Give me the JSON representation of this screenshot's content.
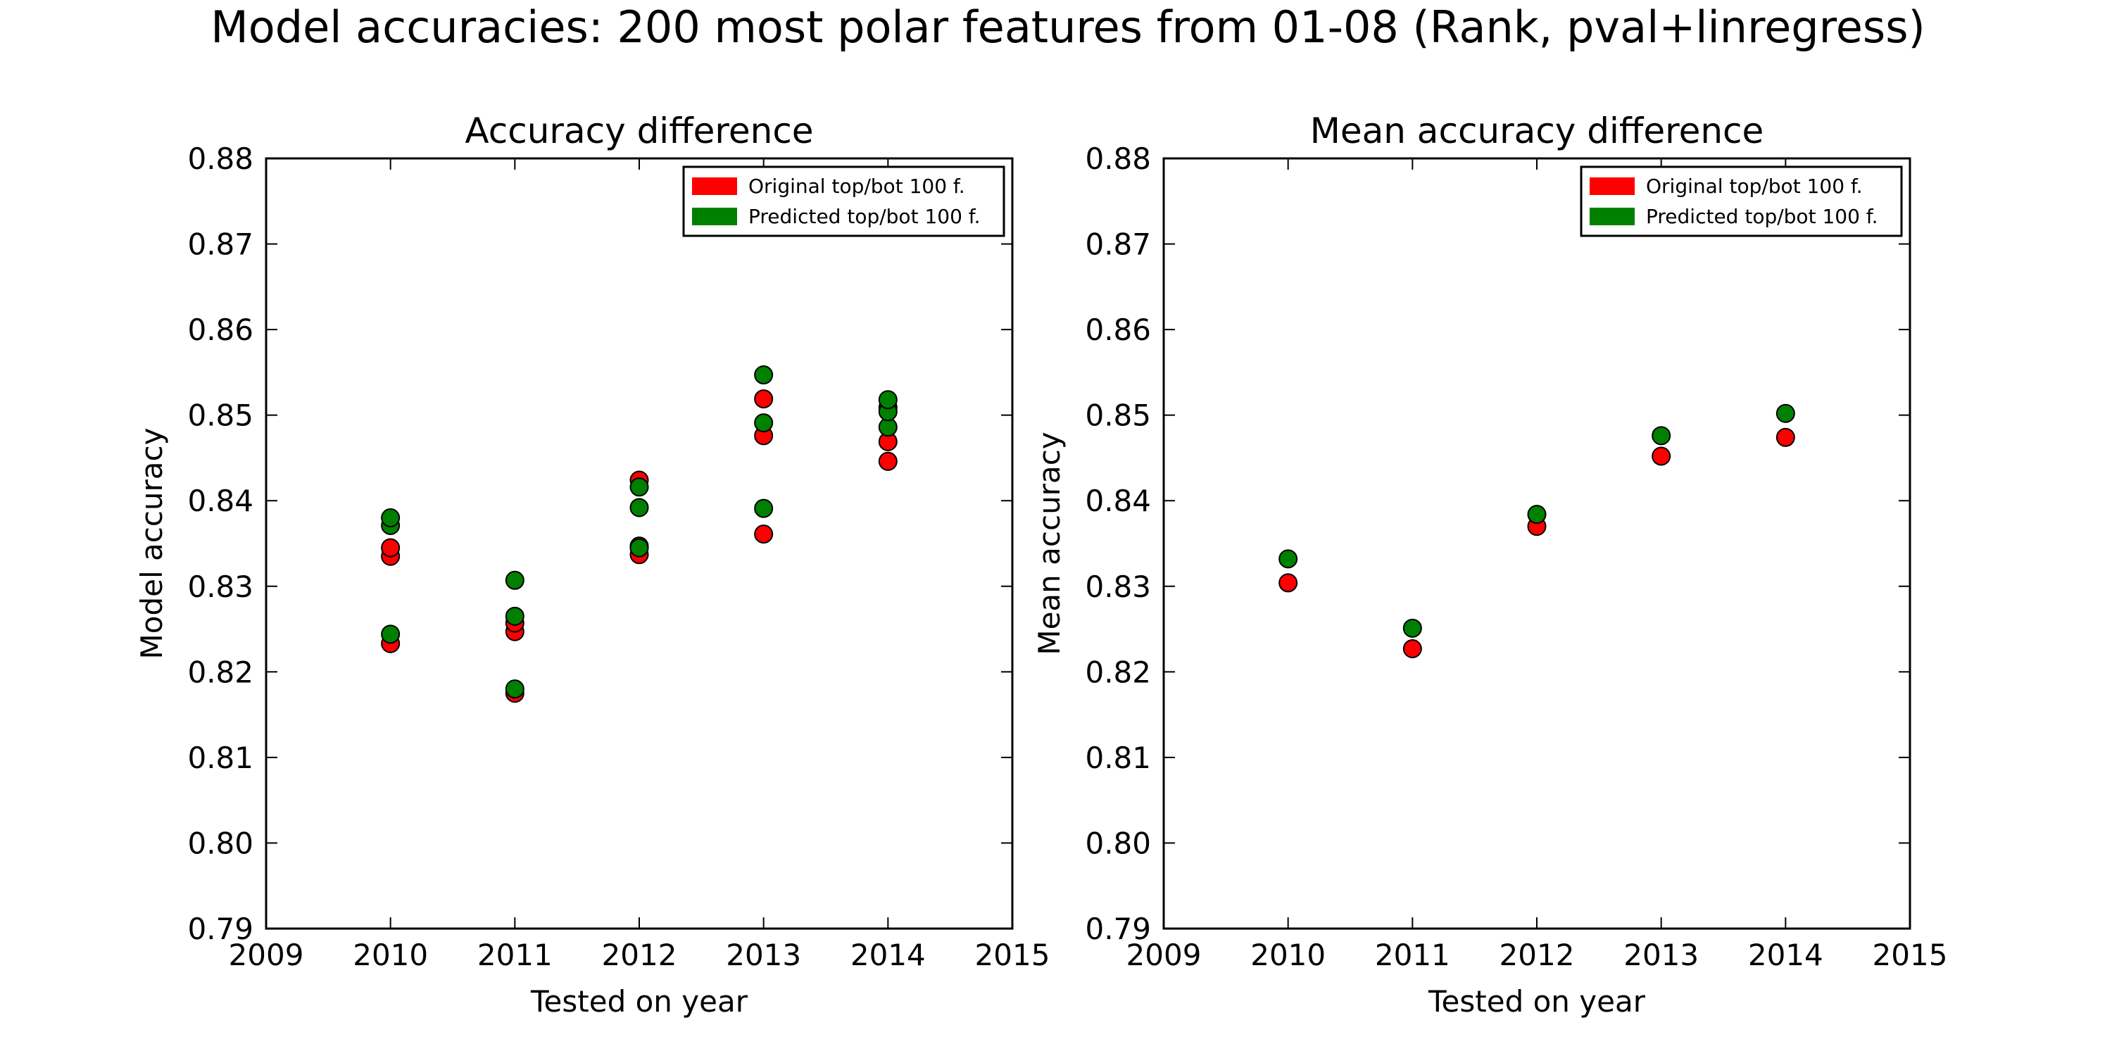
{
  "figure_title": "Model accuracies: 200 most polar features from 01-08 (Rank, pval+linregress)",
  "colors": {
    "original": "#ff0000",
    "predicted": "#008000",
    "frame": "#000000"
  },
  "chart_data": [
    {
      "type": "scatter",
      "title": "Accuracy difference",
      "xlabel": "Tested on year",
      "ylabel": "Model accuracy",
      "xlim": [
        2009,
        2015
      ],
      "ylim": [
        0.79,
        0.88
      ],
      "xticks": [
        "2009",
        "2010",
        "2011",
        "2012",
        "2013",
        "2014",
        "2015"
      ],
      "yticks": [
        "0.79",
        "0.80",
        "0.81",
        "0.82",
        "0.83",
        "0.84",
        "0.85",
        "0.86",
        "0.87",
        "0.88"
      ],
      "grid": false,
      "legend": "top-right",
      "series": [
        {
          "name": "Original top/bot 100 f.",
          "color": "#ff0000",
          "points": [
            [
              2010,
              0.8233
            ],
            [
              2010,
              0.8335
            ],
            [
              2010,
              0.8345
            ],
            [
              2011,
              0.8175
            ],
            [
              2011,
              0.8247
            ],
            [
              2011,
              0.8257
            ],
            [
              2012,
              0.8337
            ],
            [
              2012,
              0.8347
            ],
            [
              2012,
              0.8424
            ],
            [
              2013,
              0.8361
            ],
            [
              2013,
              0.8476
            ],
            [
              2013,
              0.8519
            ],
            [
              2014,
              0.8446
            ],
            [
              2014,
              0.8469
            ],
            [
              2014,
              0.8509
            ]
          ]
        },
        {
          "name": "Predicted top/bot 100 f.",
          "color": "#008000",
          "points": [
            [
              2010,
              0.8244
            ],
            [
              2010,
              0.8371
            ],
            [
              2010,
              0.838
            ],
            [
              2011,
              0.818
            ],
            [
              2011,
              0.8265
            ],
            [
              2011,
              0.8307
            ],
            [
              2012,
              0.8345
            ],
            [
              2012,
              0.8392
            ],
            [
              2012,
              0.8416
            ],
            [
              2013,
              0.8391
            ],
            [
              2013,
              0.8491
            ],
            [
              2013,
              0.8547
            ],
            [
              2014,
              0.8486
            ],
            [
              2014,
              0.8504
            ],
            [
              2014,
              0.8518
            ]
          ]
        }
      ]
    },
    {
      "type": "scatter",
      "title": "Mean accuracy difference",
      "xlabel": "Tested on year",
      "ylabel": "Mean accuracy",
      "xlim": [
        2009,
        2015
      ],
      "ylim": [
        0.79,
        0.88
      ],
      "xticks": [
        "2009",
        "2010",
        "2011",
        "2012",
        "2013",
        "2014",
        "2015"
      ],
      "yticks": [
        "0.79",
        "0.80",
        "0.81",
        "0.82",
        "0.83",
        "0.84",
        "0.85",
        "0.86",
        "0.87",
        "0.88"
      ],
      "grid": false,
      "legend": "top-right",
      "series": [
        {
          "name": "Original top/bot 100 f.",
          "color": "#ff0000",
          "points": [
            [
              2010,
              0.8304
            ],
            [
              2011,
              0.8227
            ],
            [
              2012,
              0.837
            ],
            [
              2013,
              0.8452
            ],
            [
              2014,
              0.8474
            ]
          ]
        },
        {
          "name": "Predicted top/bot 100 f.",
          "color": "#008000",
          "points": [
            [
              2010,
              0.8332
            ],
            [
              2011,
              0.8251
            ],
            [
              2012,
              0.8384
            ],
            [
              2013,
              0.8476
            ],
            [
              2014,
              0.8502
            ]
          ]
        }
      ]
    }
  ]
}
